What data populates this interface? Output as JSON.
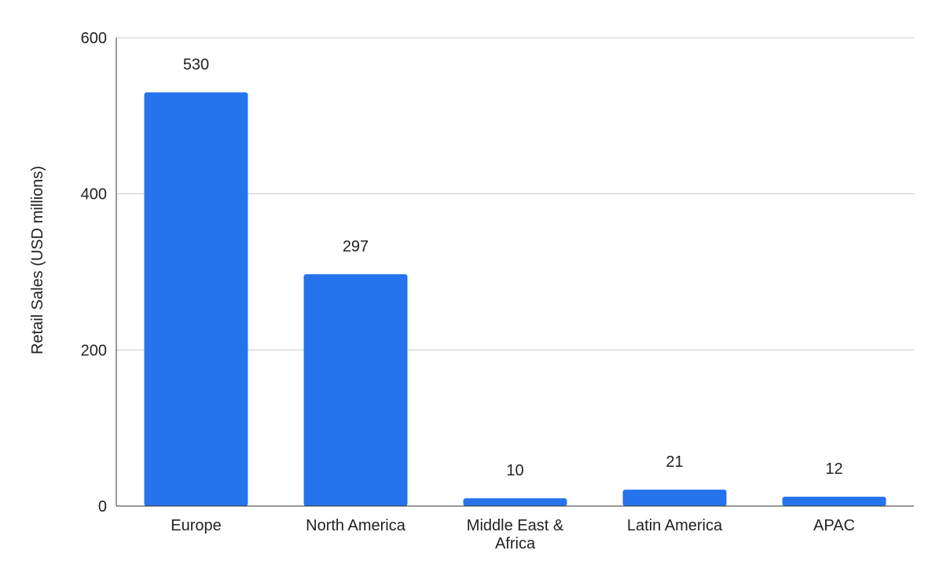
{
  "chart_data": {
    "type": "bar",
    "categories": [
      "Europe",
      "North America",
      "Middle East & Africa",
      "Latin America",
      "APAC"
    ],
    "category_lines": [
      [
        "Europe"
      ],
      [
        "North America"
      ],
      [
        "Middle East &",
        "Africa"
      ],
      [
        "Latin America"
      ],
      [
        "APAC"
      ]
    ],
    "values": [
      530,
      297,
      10,
      21,
      12
    ],
    "data_labels": [
      "530",
      "297",
      "10",
      "21",
      "12"
    ],
    "title": "",
    "xlabel": "",
    "ylabel": "Retail Sales (USD millions)",
    "ylim": [
      0,
      600
    ],
    "yticks": [
      0,
      200,
      400,
      600
    ],
    "grid": true,
    "legend": "none",
    "colors": {
      "bar": "#2673ee",
      "grid": "#cccccc",
      "axis": "#333333"
    }
  }
}
